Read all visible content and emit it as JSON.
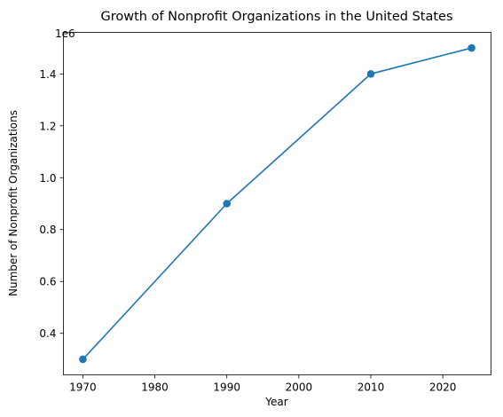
{
  "chart_data": {
    "type": "line",
    "title": "Growth of Nonprofit Organizations in the United States",
    "xlabel": "Year",
    "ylabel": "Number of Nonprofit Organizations",
    "offset_text": "1e6",
    "x": [
      1970,
      1990,
      2010,
      2024
    ],
    "series": [
      {
        "values": [
          300000,
          900000,
          1400000,
          1500000
        ]
      }
    ],
    "xlim": [
      1967.3,
      2026.7
    ],
    "ylim": [
      240000,
      1560000
    ],
    "xticks": [
      1970,
      1980,
      1990,
      2000,
      2010,
      2020
    ],
    "xtick_labels": [
      "1970",
      "1980",
      "1990",
      "2000",
      "2010",
      "2020"
    ],
    "yticks": [
      400000,
      600000,
      800000,
      1000000,
      1200000,
      1400000
    ],
    "ytick_labels": [
      "0.4",
      "0.6",
      "0.8",
      "1.0",
      "1.2",
      "1.4"
    ],
    "color": "#1f77b4",
    "grid": false,
    "marker": "circle"
  }
}
